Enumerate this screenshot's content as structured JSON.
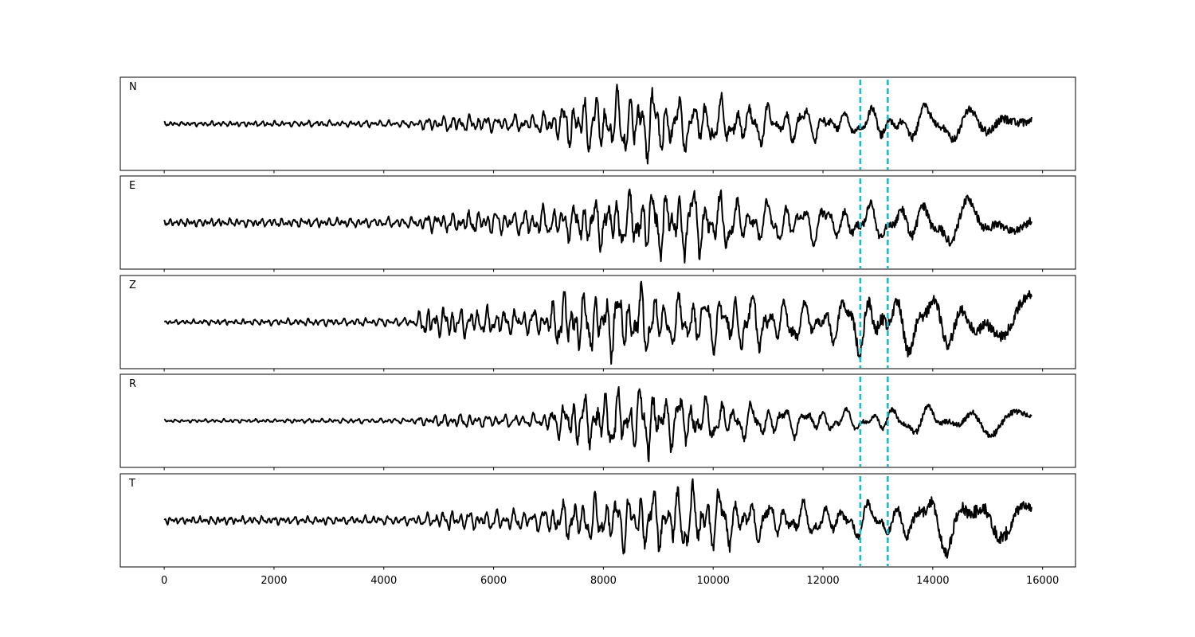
{
  "chart_data": {
    "type": "line",
    "xlim": [
      -800,
      16600
    ],
    "x_ticks": [
      0,
      2000,
      4000,
      6000,
      8000,
      10000,
      12000,
      14000,
      16000
    ],
    "x_tick_labels": [
      "0",
      "2000",
      "4000",
      "6000",
      "8000",
      "10000",
      "12000",
      "14000",
      "16000"
    ],
    "signal_x_range": [
      0,
      15800
    ],
    "markers": {
      "values": [
        12680,
        13180
      ],
      "color": "#17becf",
      "style": "dashed"
    },
    "trace_color": "#000000",
    "grid": false,
    "panels": [
      {
        "label": "N",
        "envelope": [
          [
            0,
            0.06
          ],
          [
            4500,
            0.1
          ],
          [
            5000,
            0.22
          ],
          [
            6800,
            0.24
          ],
          [
            7200,
            0.5
          ],
          [
            7600,
            0.8
          ],
          [
            8800,
            1.0
          ],
          [
            9300,
            0.8
          ],
          [
            10500,
            0.6
          ],
          [
            12000,
            0.45
          ],
          [
            12600,
            0.28
          ],
          [
            13000,
            0.5
          ],
          [
            14500,
            0.5
          ],
          [
            15300,
            0.65
          ],
          [
            15800,
            0.45
          ]
        ],
        "seed": 11
      },
      {
        "label": "E",
        "envelope": [
          [
            0,
            0.1
          ],
          [
            4500,
            0.14
          ],
          [
            5000,
            0.28
          ],
          [
            6500,
            0.35
          ],
          [
            7500,
            0.55
          ],
          [
            8800,
            1.0
          ],
          [
            9900,
            0.95
          ],
          [
            10500,
            0.6
          ],
          [
            12500,
            0.55
          ],
          [
            13200,
            0.45
          ],
          [
            13700,
            0.7
          ],
          [
            15800,
            0.5
          ]
        ],
        "seed": 23
      },
      {
        "label": "Z",
        "envelope": [
          [
            0,
            0.06
          ],
          [
            4500,
            0.12
          ],
          [
            4800,
            0.45
          ],
          [
            5500,
            0.4
          ],
          [
            6900,
            0.35
          ],
          [
            7200,
            0.8
          ],
          [
            8400,
            1.0
          ],
          [
            9500,
            0.7
          ],
          [
            10600,
            0.85
          ],
          [
            12000,
            0.5
          ],
          [
            12700,
            0.95
          ],
          [
            13200,
            0.8
          ],
          [
            15300,
            0.8
          ],
          [
            15800,
            0.7
          ]
        ],
        "seed": 37
      },
      {
        "label": "R",
        "envelope": [
          [
            0,
            0.04
          ],
          [
            4500,
            0.07
          ],
          [
            5000,
            0.18
          ],
          [
            6800,
            0.18
          ],
          [
            7200,
            0.45
          ],
          [
            7600,
            0.7
          ],
          [
            8800,
            1.0
          ],
          [
            9300,
            0.75
          ],
          [
            10700,
            0.5
          ],
          [
            12000,
            0.35
          ],
          [
            12700,
            0.25
          ],
          [
            13200,
            0.35
          ],
          [
            14700,
            0.45
          ],
          [
            15300,
            0.45
          ],
          [
            15800,
            0.3
          ]
        ],
        "seed": 53
      },
      {
        "label": "T",
        "envelope": [
          [
            0,
            0.1
          ],
          [
            4500,
            0.12
          ],
          [
            5000,
            0.25
          ],
          [
            6800,
            0.3
          ],
          [
            7200,
            0.5
          ],
          [
            8600,
            0.8
          ],
          [
            9300,
            0.9
          ],
          [
            9900,
            1.0
          ],
          [
            10600,
            0.6
          ],
          [
            12000,
            0.45
          ],
          [
            13300,
            0.5
          ],
          [
            13600,
            0.7
          ],
          [
            15300,
            0.95
          ],
          [
            15800,
            0.5
          ]
        ],
        "seed": 71
      }
    ]
  }
}
